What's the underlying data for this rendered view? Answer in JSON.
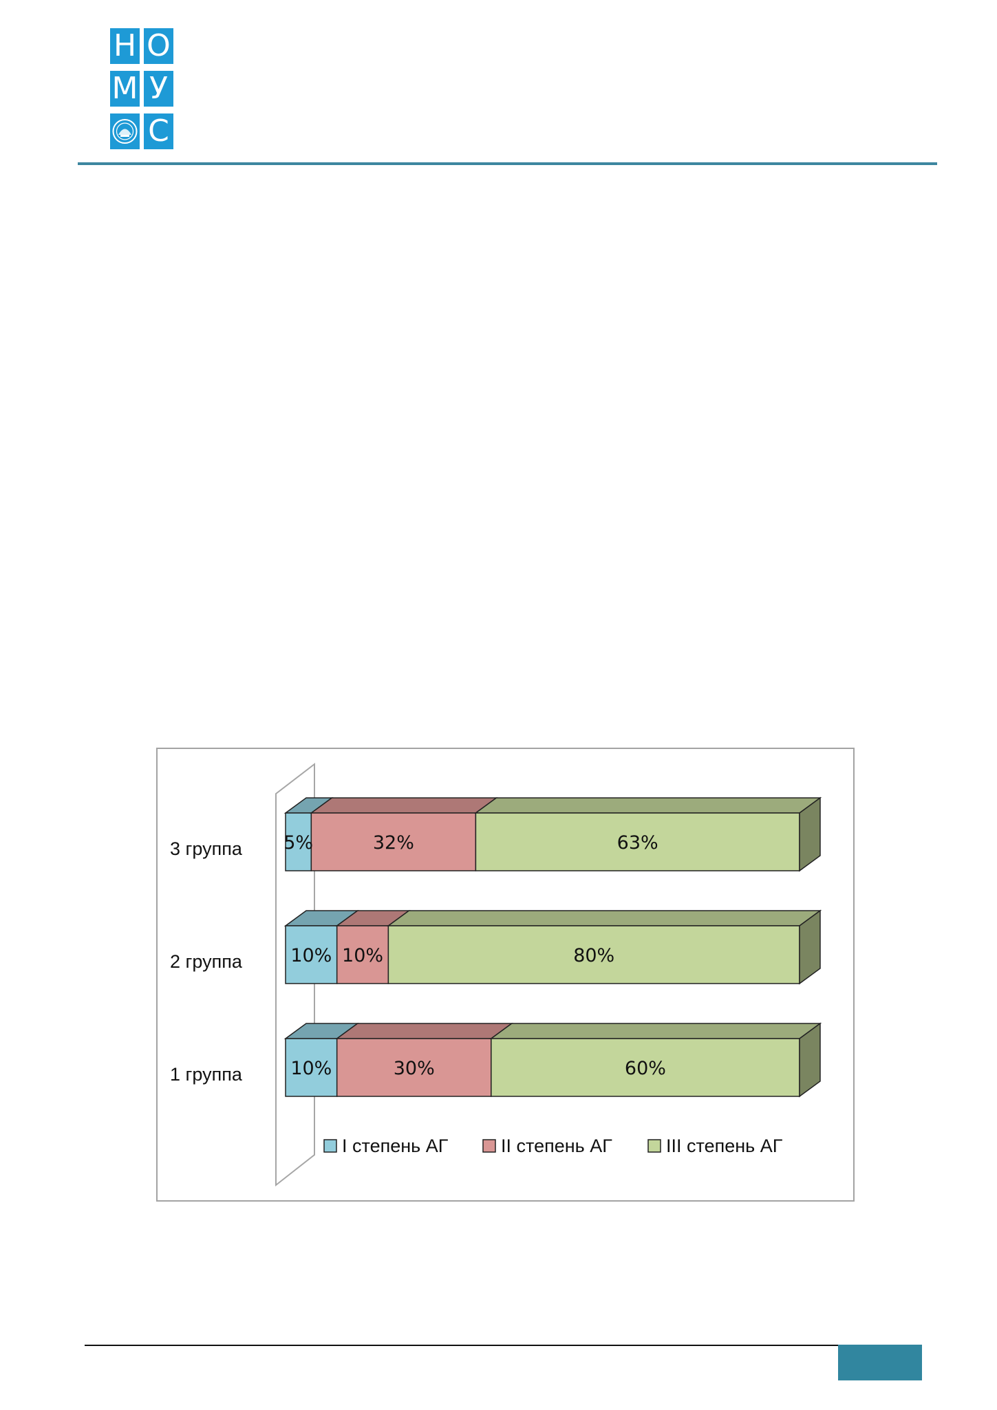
{
  "logo": {
    "letters": [
      "Н",
      "О",
      "М",
      "У",
      "",
      "С"
    ],
    "emblem_icon": "seal-emblem-icon"
  },
  "colors": {
    "logo_blue": "#1e9ad6",
    "header_line": "#3d86a0",
    "footer_block": "#31869f",
    "series": [
      "#92cddc",
      "#d99694",
      "#c3d69b"
    ],
    "series_top": [
      "#75a4b0",
      "#ae7876",
      "#9cab7c"
    ],
    "series_side": [
      "#5b8089",
      "#875d5c",
      "#7a8560"
    ]
  },
  "chart_data": {
    "type": "bar",
    "orientation": "horizontal",
    "stacked": "percent",
    "style": "3d",
    "categories": [
      "1 группа",
      "2 группа",
      "3 группа"
    ],
    "series": [
      {
        "name": "I степень АГ",
        "values": [
          10,
          10,
          5
        ],
        "labels": [
          "10%",
          "10%",
          "5%"
        ]
      },
      {
        "name": "II степень АГ",
        "values": [
          30,
          10,
          32
        ],
        "labels": [
          "30%",
          "10%",
          "32%"
        ]
      },
      {
        "name": "III степень АГ",
        "values": [
          60,
          80,
          63
        ],
        "labels": [
          "60%",
          "80%",
          "63%"
        ]
      }
    ],
    "xlim": [
      0,
      100
    ],
    "grid": false,
    "legend": "bottom"
  }
}
